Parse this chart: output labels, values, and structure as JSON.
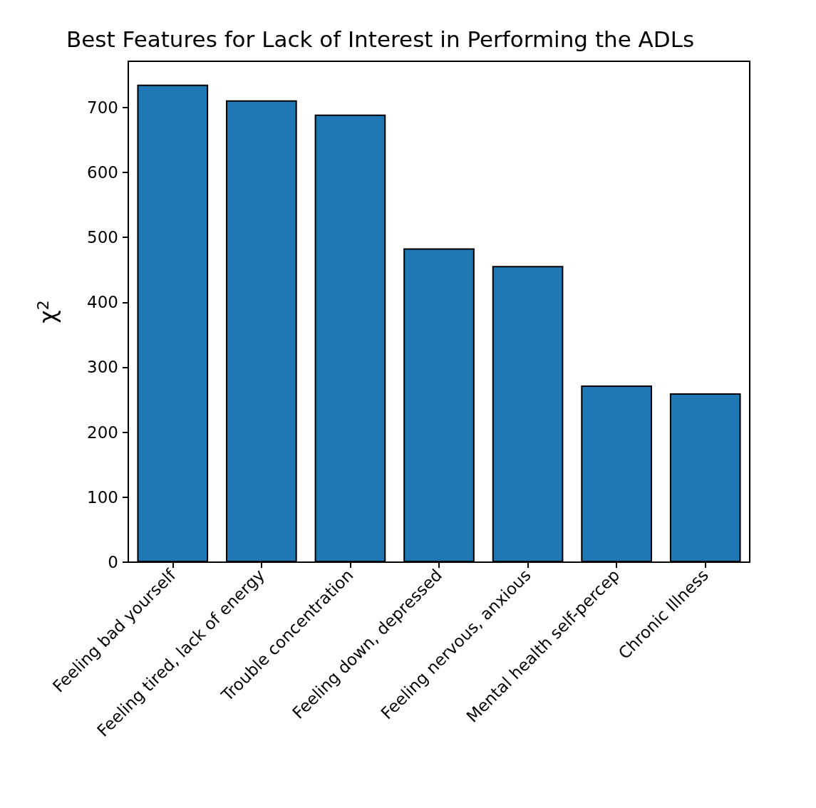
{
  "chart_data": {
    "type": "bar",
    "title": "Best Features for Lack of Interest in Performing the ADLs",
    "ylabel": "χ$^{2}$",
    "categories": [
      "Feeling bad yourself",
      "Feeling tired, lack of energy",
      "Trouble concentration",
      "Feeling down, depressed",
      "Feeling nervous, anxious",
      "Mental health self-percep",
      "Chronic Illness"
    ],
    "values": [
      735,
      711,
      689,
      483,
      456,
      272,
      260
    ],
    "color": "#1f77b4",
    "ylim": [
      0,
      771
    ],
    "yticks": [
      0,
      100,
      200,
      300,
      400,
      500,
      600,
      700
    ],
    "grid": false
  }
}
